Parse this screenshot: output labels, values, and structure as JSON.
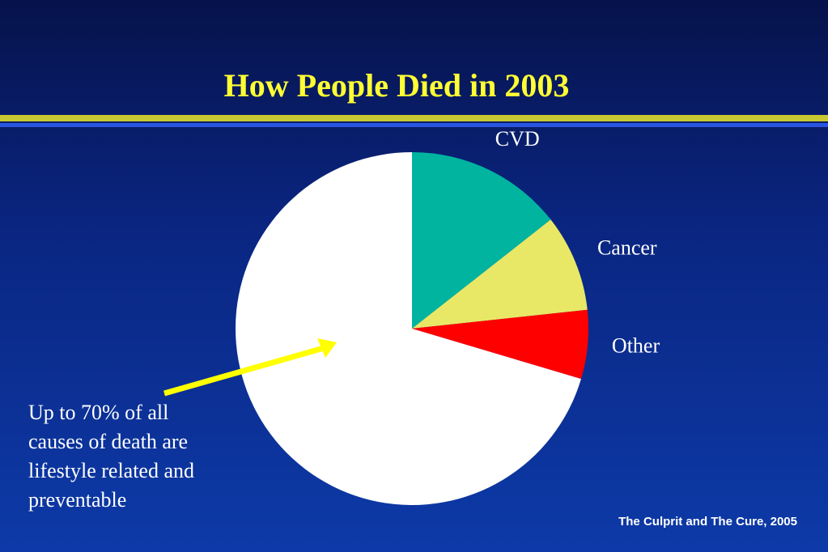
{
  "chart_data": {
    "type": "pie",
    "title": "How People Died in 2003",
    "categories": [
      "CVD",
      "Cancer",
      "Other",
      null
    ],
    "values": [
      14.4,
      8.9,
      6.3,
      70.4
    ],
    "colors": [
      "#00b4a0",
      "#e8e866",
      "#ff0000",
      "#ffffff"
    ],
    "annotation": "Up to 70% of all causes of death are lifestyle related and preventable",
    "source": "The Culprit and The Cure, 2005"
  }
}
